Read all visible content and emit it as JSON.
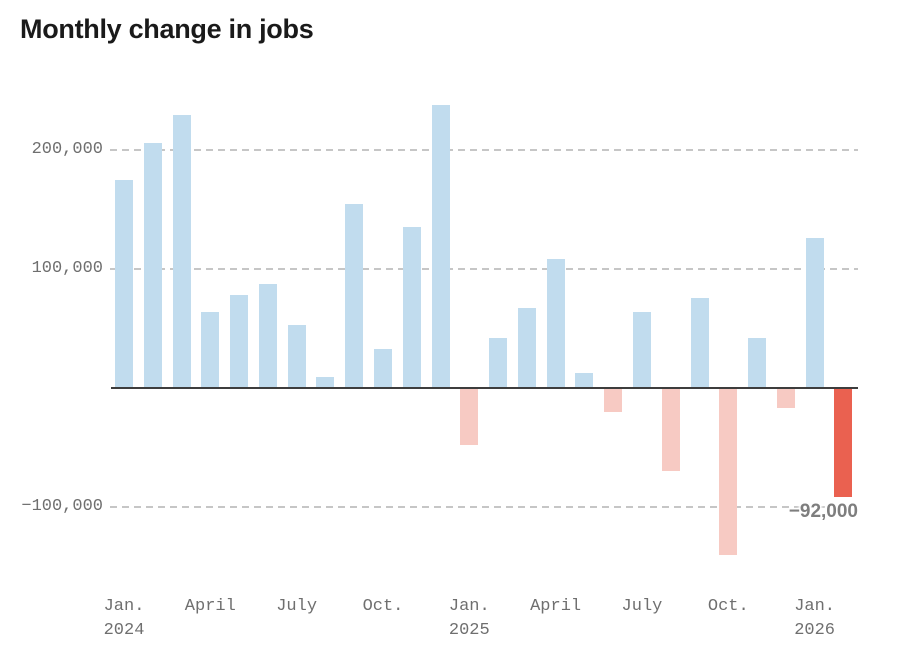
{
  "title": "Monthly change in jobs",
  "colors": {
    "positive_bar": "#c1dcee",
    "negative_bar": "#f7cac3",
    "highlight_bar": "#ea6150",
    "gridline": "#c6c6c6",
    "zero_axis": "#3d3d3d",
    "axis_text": "#6f6f6f",
    "title_text": "#1a1a1a",
    "annotation_text": "#7e7e7e"
  },
  "chart_data": {
    "type": "bar",
    "title": "Monthly change in jobs",
    "unit": "jobs",
    "x": [
      "Jan. 2024",
      "Feb. 2024",
      "March 2024",
      "April 2024",
      "May 2024",
      "June 2024",
      "July 2024",
      "Aug. 2024",
      "Sept. 2024",
      "Oct. 2024",
      "Nov. 2024",
      "Dec. 2024",
      "Jan. 2025",
      "Feb. 2025",
      "March 2025",
      "April 2025",
      "May 2025",
      "June 2025",
      "July 2025",
      "Aug. 2025",
      "Sept. 2025",
      "Oct. 2025",
      "Nov. 2025",
      "Dec. 2025",
      "Jan. 2026",
      "Feb. 2026"
    ],
    "values": [
      175000,
      206000,
      229000,
      64000,
      78000,
      87000,
      53000,
      9000,
      155000,
      33000,
      135000,
      238000,
      -48000,
      42000,
      67000,
      108000,
      13000,
      -20000,
      64000,
      -70000,
      76000,
      -140000,
      42000,
      -17000,
      126000,
      -92000
    ],
    "highlight_index": 25,
    "ylim": [
      -150000,
      250000
    ],
    "grid": "horizontal dashed lines at 200000, 100000 and -100000; solid axis line at 0; no vertical gridlines; legend none",
    "y_ticks": [
      {
        "value": 200000,
        "label": "200,000"
      },
      {
        "value": 100000,
        "label": "100,000"
      },
      {
        "value": -100000,
        "label": "−100,000"
      }
    ],
    "x_ticks": [
      {
        "index": 0,
        "line1": "Jan.",
        "line2": "2024"
      },
      {
        "index": 3,
        "line1": "April",
        "line2": ""
      },
      {
        "index": 6,
        "line1": "July",
        "line2": ""
      },
      {
        "index": 9,
        "line1": "Oct.",
        "line2": ""
      },
      {
        "index": 12,
        "line1": "Jan.",
        "line2": "2025"
      },
      {
        "index": 15,
        "line1": "April",
        "line2": ""
      },
      {
        "index": 18,
        "line1": "July",
        "line2": ""
      },
      {
        "index": 21,
        "line1": "Oct.",
        "line2": ""
      },
      {
        "index": 24,
        "line1": "Jan.",
        "line2": "2026"
      }
    ],
    "annotation": {
      "text": "−92,000",
      "value": -92000,
      "index": 25
    }
  }
}
